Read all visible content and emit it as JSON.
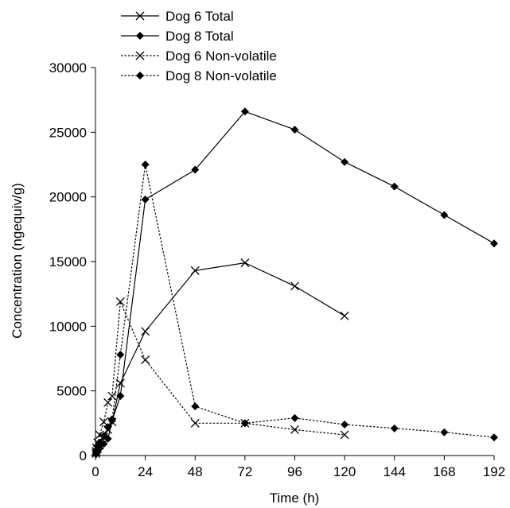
{
  "chart_data": {
    "type": "line",
    "xlabel": "Time (h)",
    "ylabel": "Concentration (ngequiv/g)",
    "xlim": [
      0,
      192
    ],
    "ylim": [
      0,
      30000
    ],
    "xticks": [
      0,
      24,
      48,
      72,
      96,
      120,
      144,
      168,
      192
    ],
    "yticks": [
      0,
      5000,
      10000,
      15000,
      20000,
      25000,
      30000
    ],
    "grid": false,
    "legend": "top-left",
    "series": [
      {
        "name": "Dog 6 Total",
        "marker": "x",
        "line": "solid",
        "color": "#000000",
        "points": [
          [
            0.25,
            150
          ],
          [
            0.5,
            300
          ],
          [
            1,
            500
          ],
          [
            2,
            800
          ],
          [
            4,
            1400
          ],
          [
            6,
            2000
          ],
          [
            8,
            2600
          ],
          [
            12,
            5600
          ],
          [
            24,
            9600
          ],
          [
            48,
            14300
          ],
          [
            72,
            14900
          ],
          [
            96,
            13100
          ],
          [
            120,
            10800
          ]
        ]
      },
      {
        "name": "Dog 8 Total",
        "marker": "diamond",
        "line": "solid",
        "color": "#000000",
        "points": [
          [
            0.25,
            100
          ],
          [
            0.5,
            200
          ],
          [
            1,
            350
          ],
          [
            2,
            550
          ],
          [
            4,
            900
          ],
          [
            6,
            1300
          ],
          [
            8,
            2700
          ],
          [
            12,
            4600
          ],
          [
            24,
            19800
          ],
          [
            48,
            22100
          ],
          [
            72,
            26600
          ],
          [
            96,
            25200
          ],
          [
            120,
            22700
          ],
          [
            144,
            20800
          ],
          [
            168,
            18600
          ],
          [
            192,
            16400
          ]
        ]
      },
      {
        "name": "Dog 6 Non-volatile",
        "marker": "x",
        "line": "dotted",
        "color": "#000000",
        "points": [
          [
            0.25,
            300
          ],
          [
            0.5,
            600
          ],
          [
            1,
            1000
          ],
          [
            2,
            1600
          ],
          [
            4,
            2600
          ],
          [
            6,
            4100
          ],
          [
            8,
            4600
          ],
          [
            12,
            11900
          ],
          [
            24,
            7400
          ],
          [
            48,
            2500
          ],
          [
            72,
            2500
          ],
          [
            96,
            2000
          ],
          [
            120,
            1600
          ]
        ]
      },
      {
        "name": "Dog 8 Non-volatile",
        "marker": "diamond",
        "line": "dotted",
        "color": "#000000",
        "points": [
          [
            0.25,
            200
          ],
          [
            0.5,
            400
          ],
          [
            1,
            700
          ],
          [
            2,
            1000
          ],
          [
            4,
            1500
          ],
          [
            6,
            2200
          ],
          [
            8,
            2800
          ],
          [
            12,
            7800
          ],
          [
            24,
            22500
          ],
          [
            48,
            3800
          ],
          [
            72,
            2500
          ],
          [
            96,
            2900
          ],
          [
            120,
            2400
          ],
          [
            144,
            2100
          ],
          [
            168,
            1800
          ],
          [
            192,
            1400
          ]
        ]
      }
    ]
  }
}
